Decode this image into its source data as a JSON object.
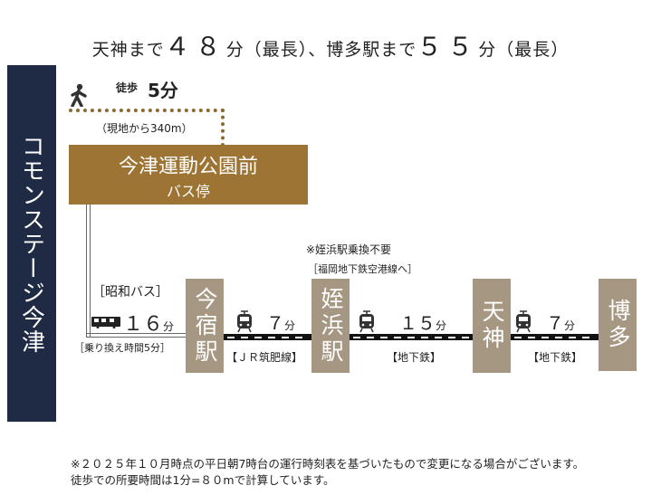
{
  "title": {
    "pre1": "天神まで",
    "min1": "４８",
    "post1": "分（最長）、博多駅まで",
    "min2": "５５",
    "post2": "分（最長）"
  },
  "origin": "コモンステージ今津",
  "walk": {
    "label": "徒歩",
    "minutes": "5分",
    "distance": "（現地から340m）"
  },
  "bus_stop": {
    "name": "今津運動公園前",
    "sub": "バス停"
  },
  "bus": {
    "line": "［昭和バス］",
    "minutes": "１６",
    "unit": "分",
    "transfer": "［乗り換え時間5分］"
  },
  "transfer_note": {
    "line1": "※姪浜駅乗換不要",
    "line2": "［福岡地下鉄空港線へ］"
  },
  "stations": [
    "今宿駅",
    "姪浜駅",
    "天神",
    "博多"
  ],
  "segments": [
    {
      "minutes": "７",
      "unit": "分",
      "line": "【ＪＲ筑肥線】"
    },
    {
      "minutes": "１５",
      "unit": "分",
      "line": "【地下鉄】"
    },
    {
      "minutes": "７",
      "unit": "分",
      "line": "【地下鉄】"
    }
  ],
  "footnotes": [
    "※２０２５年１０月時点の平日朝7時台の運行時刻表を基づいたもので変更になる場合がございます。",
    "徒歩での所要時間は1分=８０mで計算しています。"
  ],
  "colors": {
    "navy": "#1f2a44",
    "gold": "#9d7434",
    "station": "#a69782"
  }
}
